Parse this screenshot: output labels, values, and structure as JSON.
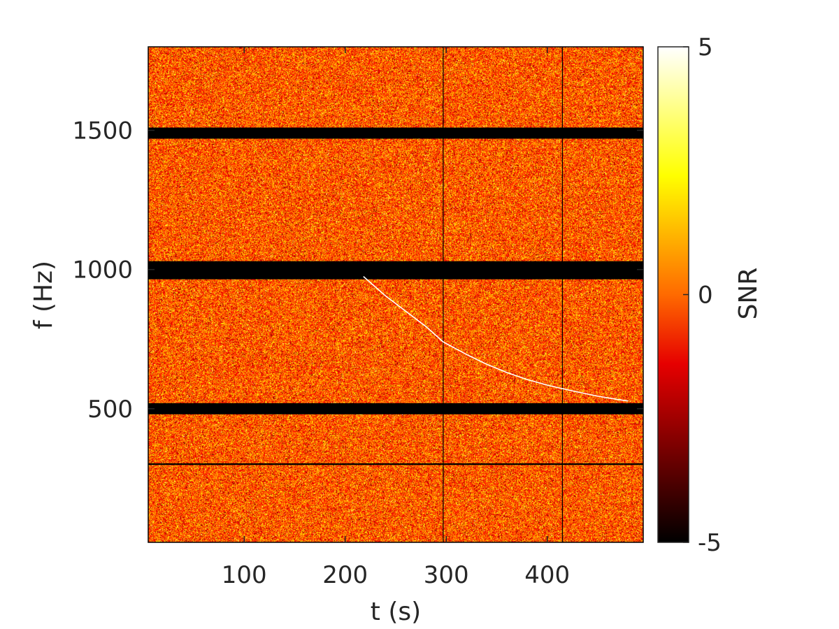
{
  "chart_data": {
    "type": "heatmap",
    "title": "",
    "xlabel": "t (s)",
    "ylabel": "f (Hz)",
    "colorbar_label": "SNR",
    "xlim": [
      5,
      495
    ],
    "ylim": [
      20,
      1800
    ],
    "clim": [
      -5,
      5
    ],
    "colormap": "hot",
    "x_ticks": [
      100,
      200,
      300,
      400
    ],
    "x_tick_labels": [
      "100",
      "200",
      "300",
      "400"
    ],
    "y_ticks": [
      500,
      1000,
      1500
    ],
    "y_tick_labels": [
      "500",
      "1000",
      "1500"
    ],
    "colorbar_ticks": [
      5,
      0,
      -5
    ],
    "colorbar_tick_labels": [
      "5",
      "0",
      "-5"
    ],
    "grid": false,
    "background_noise": {
      "mean_snr": 0,
      "std_snr": 1.4
    },
    "masked_frequency_bands_hz": [
      [
        1470,
        1510
      ],
      [
        965,
        1030
      ],
      [
        480,
        520
      ],
      [
        298,
        302
      ],
      [
        303,
        304
      ]
    ],
    "masked_times_s": [
      297,
      415
    ],
    "chirp_track": {
      "snr": 5,
      "t": [
        218,
        240,
        260,
        280,
        297,
        320,
        340,
        360,
        380,
        400,
        415,
        430,
        450,
        470,
        480
      ],
      "f": [
        975,
        905,
        850,
        795,
        740,
        695,
        660,
        630,
        605,
        585,
        572,
        560,
        545,
        533,
        528
      ]
    }
  }
}
